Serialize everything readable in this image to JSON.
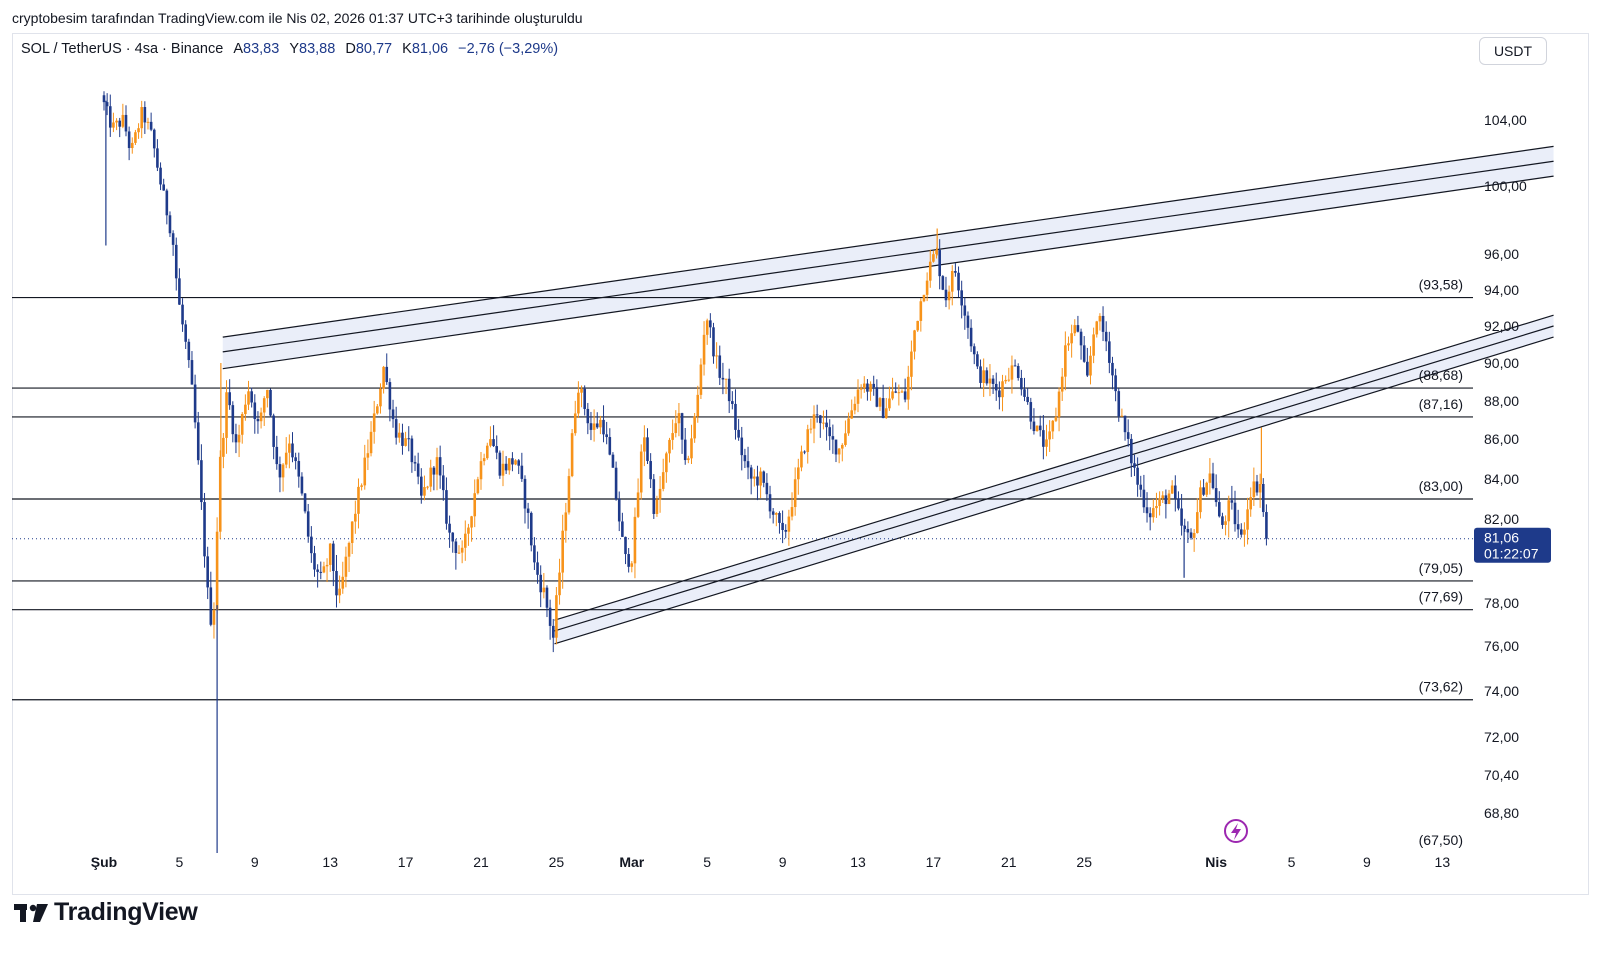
{
  "caption": "cryptobesim tarafından TradingView.com ile Nis 02, 2026 01:37 UTC+3 tarihinde oluşturuldu",
  "legend": {
    "symbol": "SOL / TetherUS · 4sa · Binance",
    "open_label": "A",
    "open": "83,83",
    "high_label": "Y",
    "high": "83,88",
    "low_label": "D",
    "low": "80,77",
    "close_label": "K",
    "close": "81,06",
    "change": "−2,76 (−3,29%)"
  },
  "currency": "USDT",
  "brand": "TradingView",
  "colors": {
    "up": "#f7931a",
    "down": "#1e3a8a",
    "level": "#131722",
    "channel_fill": "#e3e8f7"
  },
  "chart_data": {
    "type": "candlestick",
    "timeframe": "4h",
    "title": "SOL / TetherUS · 4sa · Binance",
    "y_axis": {
      "ticks": [
        68.8,
        70.4,
        72.0,
        74.0,
        76.0,
        78.0,
        82.0,
        84.0,
        86.0,
        88.0,
        90.0,
        92.0,
        94.0,
        96.0,
        100.0,
        104.0
      ],
      "tick_labels": [
        "68,80",
        "70,40",
        "72,00",
        "74,00",
        "76,00",
        "78,00",
        "82,00",
        "84,00",
        "86,00",
        "88,00",
        "90,00",
        "92,00",
        "94,00",
        "96,00",
        "100,00",
        "104,00"
      ],
      "range": [
        67.0,
        108.0
      ]
    },
    "x_axis": {
      "ticks": [
        {
          "day": 0,
          "label": "Şub",
          "bold": true
        },
        {
          "day": 4,
          "label": "5"
        },
        {
          "day": 8,
          "label": "9"
        },
        {
          "day": 12,
          "label": "13"
        },
        {
          "day": 16,
          "label": "17"
        },
        {
          "day": 20,
          "label": "21"
        },
        {
          "day": 24,
          "label": "25"
        },
        {
          "day": 28,
          "label": "Mar",
          "bold": true
        },
        {
          "day": 32,
          "label": "5"
        },
        {
          "day": 36,
          "label": "9"
        },
        {
          "day": 40,
          "label": "13"
        },
        {
          "day": 44,
          "label": "17"
        },
        {
          "day": 48,
          "label": "21"
        },
        {
          "day": 52,
          "label": "25"
        },
        {
          "day": 59,
          "label": "Nis",
          "bold": true
        },
        {
          "day": 63,
          "label": "5"
        },
        {
          "day": 67,
          "label": "9"
        },
        {
          "day": 71,
          "label": "13"
        }
      ]
    },
    "horizontal_levels": [
      {
        "price": 93.58,
        "label": "(93,58)"
      },
      {
        "price": 88.68,
        "label": "(88,68)"
      },
      {
        "price": 87.16,
        "label": "(87,16)"
      },
      {
        "price": 83.0,
        "label": "(83,00)"
      },
      {
        "price": 79.05,
        "label": "(79,05)"
      },
      {
        "price": 77.69,
        "label": "(77,69)"
      },
      {
        "price": 73.62,
        "label": "(73,62)"
      }
    ],
    "bottom_level_label": {
      "price": 67.5,
      "label": "(67,50)"
    },
    "last_price": {
      "price": 81.06,
      "label": "81,06",
      "countdown": "01:22:07"
    },
    "channels": [
      {
        "name": "upper-rising-channel",
        "lines": [
          {
            "start": [
              6.3,
              91.4
            ],
            "end": [
              76.9,
              102.4
            ]
          },
          {
            "start": [
              6.3,
              90.6
            ],
            "end": [
              76.9,
              101.5
            ]
          },
          {
            "start": [
              6.3,
              89.7
            ],
            "end": [
              76.9,
              100.6
            ]
          }
        ]
      },
      {
        "name": "lower-rising-channel",
        "lines": [
          {
            "start": [
              23.9,
              77.2
            ],
            "end": [
              76.9,
              92.6
            ]
          },
          {
            "start": [
              23.9,
              76.7
            ],
            "end": [
              76.9,
              92.0
            ]
          },
          {
            "start": [
              23.9,
              76.1
            ],
            "end": [
              76.9,
              91.4
            ]
          }
        ]
      }
    ],
    "path_anchors": [
      [
        0.0,
        105.5
      ],
      [
        0.6,
        103.5
      ],
      [
        1.2,
        104.0
      ],
      [
        1.6,
        102.0
      ],
      [
        2.2,
        104.5
      ],
      [
        2.7,
        103.0
      ],
      [
        3.2,
        100.0
      ],
      [
        3.8,
        97.0
      ],
      [
        4.1,
        93.5
      ],
      [
        4.5,
        91.0
      ],
      [
        4.9,
        88.0
      ],
      [
        5.3,
        83.0
      ],
      [
        5.7,
        78.0
      ],
      [
        5.95,
        76.8
      ],
      [
        6.3,
        84.5
      ],
      [
        6.7,
        88.5
      ],
      [
        7.2,
        85.5
      ],
      [
        7.8,
        88.8
      ],
      [
        8.4,
        86.5
      ],
      [
        8.8,
        89.0
      ],
      [
        9.4,
        84.0
      ],
      [
        10.0,
        86.0
      ],
      [
        10.6,
        83.5
      ],
      [
        11.2,
        80.0
      ],
      [
        11.7,
        79.0
      ],
      [
        12.2,
        80.5
      ],
      [
        12.6,
        77.9
      ],
      [
        13.4,
        82.0
      ],
      [
        14.4,
        86.5
      ],
      [
        15.0,
        89.8
      ],
      [
        15.6,
        86.5
      ],
      [
        16.4,
        85.5
      ],
      [
        17.0,
        83.0
      ],
      [
        17.8,
        85.0
      ],
      [
        18.5,
        81.2
      ],
      [
        19.2,
        80.2
      ],
      [
        20.0,
        84.2
      ],
      [
        20.6,
        86.4
      ],
      [
        21.2,
        84.5
      ],
      [
        22.0,
        85.0
      ],
      [
        22.6,
        82.5
      ],
      [
        23.0,
        79.8
      ],
      [
        23.5,
        78.5
      ],
      [
        24.0,
        76.4
      ],
      [
        24.6,
        82.0
      ],
      [
        25.3,
        89.0
      ],
      [
        26.0,
        86.5
      ],
      [
        26.6,
        87.0
      ],
      [
        27.2,
        84.0
      ],
      [
        27.8,
        80.0
      ],
      [
        28.2,
        80.3
      ],
      [
        28.8,
        86.5
      ],
      [
        29.4,
        82.2
      ],
      [
        30.0,
        85.0
      ],
      [
        30.6,
        87.5
      ],
      [
        31.0,
        84.5
      ],
      [
        31.6,
        87.5
      ],
      [
        32.1,
        92.8
      ],
      [
        32.7,
        89.8
      ],
      [
        33.3,
        88.5
      ],
      [
        33.8,
        86.0
      ],
      [
        34.4,
        84.0
      ],
      [
        35.0,
        84.0
      ],
      [
        35.6,
        82.5
      ],
      [
        36.2,
        81.0
      ],
      [
        36.8,
        83.5
      ],
      [
        37.4,
        86.0
      ],
      [
        38.0,
        87.5
      ],
      [
        38.6,
        86.0
      ],
      [
        39.2,
        85.5
      ],
      [
        39.8,
        87.5
      ],
      [
        40.3,
        89.0
      ],
      [
        40.9,
        88.5
      ],
      [
        41.5,
        87.5
      ],
      [
        42.1,
        88.5
      ],
      [
        42.7,
        88.2
      ],
      [
        43.2,
        92.0
      ],
      [
        43.8,
        94.8
      ],
      [
        44.3,
        96.2
      ],
      [
        44.8,
        93.5
      ],
      [
        45.3,
        95.2
      ],
      [
        45.9,
        92.5
      ],
      [
        46.5,
        89.5
      ],
      [
        47.1,
        89.0
      ],
      [
        47.6,
        88.5
      ],
      [
        48.1,
        89.5
      ],
      [
        48.6,
        89.8
      ],
      [
        49.1,
        88.0
      ],
      [
        49.6,
        86.5
      ],
      [
        50.2,
        85.5
      ],
      [
        50.7,
        87.5
      ],
      [
        51.2,
        91.0
      ],
      [
        51.8,
        92.0
      ],
      [
        52.3,
        88.8
      ],
      [
        52.8,
        92.7
      ],
      [
        53.4,
        91.0
      ],
      [
        53.9,
        88.0
      ],
      [
        54.4,
        86.0
      ],
      [
        55.0,
        83.8
      ],
      [
        55.6,
        82.3
      ],
      [
        56.2,
        82.8
      ],
      [
        56.8,
        83.4
      ],
      [
        57.3,
        81.7
      ],
      [
        57.8,
        80.8
      ],
      [
        58.4,
        83.5
      ],
      [
        58.9,
        84.3
      ],
      [
        59.4,
        81.5
      ],
      [
        59.9,
        82.7
      ],
      [
        60.5,
        81.0
      ],
      [
        61.0,
        83.5
      ],
      [
        61.5,
        83.8
      ],
      [
        61.8,
        81.06
      ]
    ],
    "sharp_wicks": [
      {
        "day": 0.1,
        "low": 96.5
      },
      {
        "day": 6.0,
        "low": 67.0
      },
      {
        "day": 6.2,
        "high": 90.0
      },
      {
        "day": 57.3,
        "low": 79.2
      },
      {
        "day": 61.4,
        "high": 86.6
      },
      {
        "day": 44.2,
        "high": 97.5
      }
    ]
  }
}
